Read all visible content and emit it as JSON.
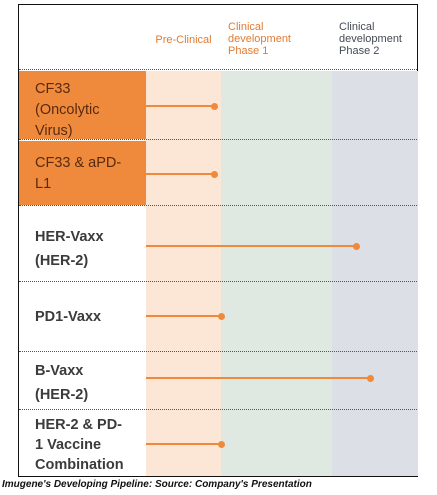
{
  "columns": {
    "pre_clinical": "Pre-Clinical",
    "phase1": "Clinical\ndevelopment\nPhase 1",
    "phase2": "Clinical\ndevelopment\nPhase 2"
  },
  "rows": [
    {
      "label": "CF33\n(Oncolytic\nVirus)",
      "stage_end": "Pre-Clinical"
    },
    {
      "label": "CF33 & aPD-\nL1",
      "stage_end": "Pre-Clinical"
    },
    {
      "label": "HER-Vaxx\n(HER-2)",
      "stage_end": "Clinical development Phase 2"
    },
    {
      "label": "PD1-Vaxx",
      "stage_end": "Clinical development Phase 1"
    },
    {
      "label": "B-Vaxx\n(HER-2)",
      "stage_end": "Clinical development Phase 2"
    },
    {
      "label": "HER-2 & PD-\n1 Vaccine\nCombination",
      "stage_end": "Clinical development Phase 1"
    }
  ],
  "caption": "Imugene's Developing Pipeline: Source: Company's Presentation",
  "colors": {
    "accent": "#ef8a3c",
    "pre_clinical_bg": "#fce6d6",
    "phase1_bg": "#dfe9e2",
    "phase2_bg": "#dcdfe6"
  }
}
